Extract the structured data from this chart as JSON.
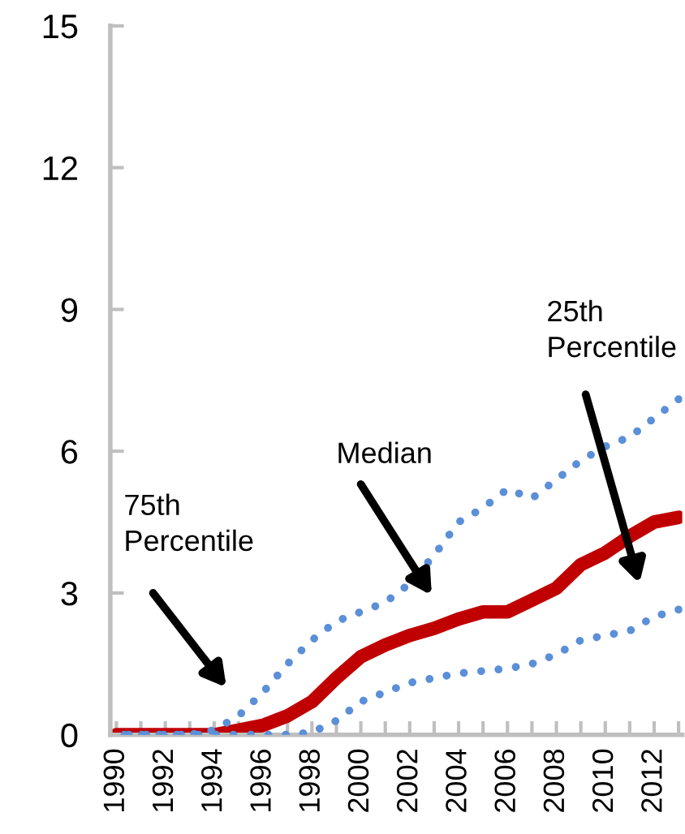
{
  "chart_data": {
    "type": "line",
    "categories": [
      "1990",
      null,
      "1992",
      null,
      "1994",
      null,
      "1996",
      null,
      "1998",
      null,
      "2000",
      null,
      "2002",
      null,
      "2004",
      null,
      "2006",
      null,
      "2008",
      null,
      "2010",
      null,
      "2012",
      null
    ],
    "ylim": [
      0,
      15
    ],
    "yticks": [
      0,
      3,
      6,
      9,
      12,
      15
    ],
    "grid": false,
    "legend": false,
    "annotations": [
      "75th Percentile",
      "Median",
      "25th Percentile"
    ],
    "series": [
      {
        "color": "#5b8fd8",
        "line_style": "dotted",
        "values": [
          0,
          0,
          0,
          0,
          0.1,
          0.4,
          0.9,
          1.5,
          2.0,
          2.4,
          2.6,
          2.8,
          3.2,
          3.8,
          4.5,
          4.8,
          5.2,
          5.0,
          5.4,
          5.8,
          6.1,
          6.3,
          6.7,
          7.1
        ]
      },
      {
        "color": "#c00000",
        "line_style": "solid",
        "values": [
          0,
          0,
          0,
          0,
          0,
          0.1,
          0.2,
          0.4,
          0.7,
          1.2,
          1.65,
          1.9,
          2.1,
          2.25,
          2.45,
          2.6,
          2.6,
          2.85,
          3.1,
          3.6,
          3.85,
          4.2,
          4.5,
          4.6
        ]
      },
      {
        "color": "#5b8fd8",
        "line_style": "dotted",
        "values": [
          0,
          0,
          0,
          0,
          0,
          0,
          0,
          0,
          0.05,
          0.3,
          0.7,
          0.9,
          1.1,
          1.2,
          1.3,
          1.35,
          1.4,
          1.5,
          1.7,
          2.0,
          2.1,
          2.2,
          2.5,
          2.65
        ]
      }
    ]
  }
}
